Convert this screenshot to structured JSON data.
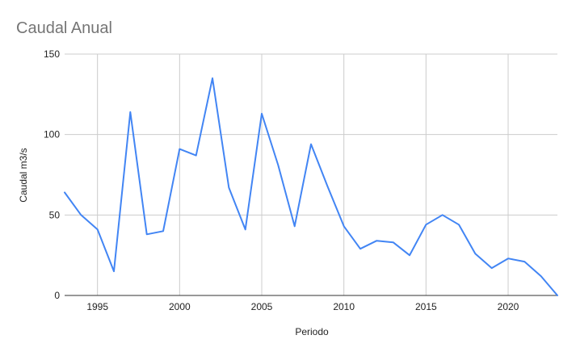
{
  "chart_data": {
    "type": "line",
    "title": "Caudal Anual",
    "xlabel": "Periodo",
    "ylabel": "Caudal m3/s",
    "xlim": [
      1993,
      2023
    ],
    "ylim": [
      0,
      150
    ],
    "x_ticks": [
      1995,
      2000,
      2005,
      2010,
      2015,
      2020
    ],
    "y_ticks": [
      0,
      50,
      100,
      150
    ],
    "grid": true,
    "legend": "none",
    "series": [
      {
        "color": "#4285f4",
        "x": [
          1993,
          1994,
          1995,
          1996,
          1997,
          1998,
          1999,
          2000,
          2001,
          2002,
          2003,
          2004,
          2005,
          2006,
          2007,
          2008,
          2009,
          2010,
          2011,
          2012,
          2013,
          2014,
          2015,
          2016,
          2017,
          2018,
          2019,
          2020,
          2021,
          2022,
          2023
        ],
        "values": [
          64,
          50,
          41,
          15,
          114,
          38,
          40,
          91,
          87,
          135,
          67,
          41,
          113,
          81,
          43,
          94,
          68,
          43,
          29,
          34,
          33,
          25,
          44,
          50,
          44,
          26,
          17,
          23,
          21,
          12,
          0
        ]
      }
    ]
  }
}
